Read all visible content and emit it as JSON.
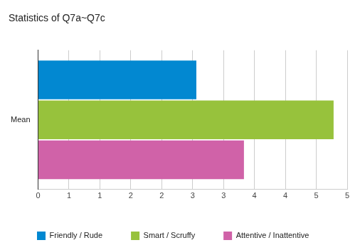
{
  "chart_data": {
    "type": "bar",
    "orientation": "horizontal",
    "title": "Statistics of Q7a~Q7c",
    "categories": [
      "Mean"
    ],
    "series": [
      {
        "name": "Friendly / Rude",
        "color": "#0288d1",
        "values": [
          2.56
        ]
      },
      {
        "name": "Smart / Scruffy",
        "color": "#97c23c",
        "values": [
          4.78
        ]
      },
      {
        "name": "Attentive / Inattentive",
        "color": "#d062a8",
        "values": [
          3.33
        ]
      }
    ],
    "xlim": [
      0,
      5
    ],
    "xticks": [
      0,
      {
        "value": 0.5,
        "label": "1"
      },
      1,
      {
        "value": 1.5,
        "label": "2"
      },
      2,
      {
        "value": 2.5,
        "label": "3"
      },
      3,
      {
        "value": 3.5,
        "label": "4"
      },
      4,
      {
        "value": 4.5,
        "label": "5"
      },
      5
    ],
    "grid": true,
    "legend": "bottom"
  }
}
